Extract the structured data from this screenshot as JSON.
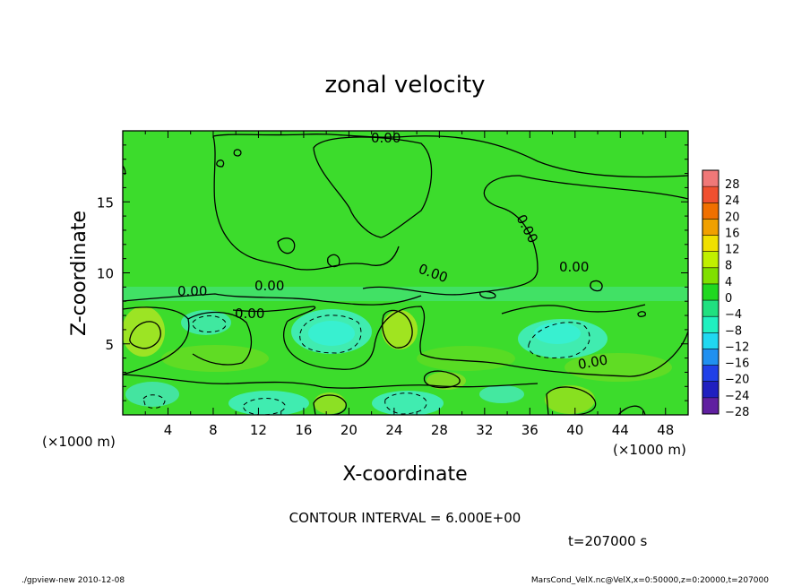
{
  "chart_data": {
    "type": "heatmap",
    "title": "zonal velocity",
    "xlabel": "X-coordinate",
    "ylabel": "Z-coordinate",
    "x_unit": "(×1000 m)",
    "y_unit": "(×1000 m)",
    "xlim": [
      0,
      50
    ],
    "ylim": [
      0,
      20
    ],
    "x_ticks": [
      4,
      8,
      12,
      16,
      20,
      24,
      28,
      32,
      36,
      40,
      44,
      48
    ],
    "y_ticks": [
      5,
      10,
      15
    ],
    "colorbar_levels": [
      28,
      24,
      20,
      16,
      12,
      8,
      4,
      0,
      -4,
      -8,
      -12,
      -16,
      -20,
      -24,
      -28
    ],
    "colorbar_colors": [
      "#f07878",
      "#f05030",
      "#f07000",
      "#f0a000",
      "#f0e000",
      "#c0f000",
      "#80e000",
      "#20d820",
      "#20e080",
      "#20f0c0",
      "#20d8f0",
      "#2090f0",
      "#2040e8",
      "#2020c0",
      "#6020a0"
    ],
    "contour_interval_text": "CONTOUR INTERVAL = 6.000E+00",
    "contour_labels": [
      "0.00",
      "0.00",
      "0.00",
      "0.00",
      "0.00",
      "0.00",
      "0.00",
      "0.00"
    ],
    "time_text": "t=207000 s",
    "footer_left": "./gpview-new  2010-12-08",
    "footer_right": "MarsCond_VelX.nc@VelX,x=0:50000,z=0:20000,t=207000"
  }
}
